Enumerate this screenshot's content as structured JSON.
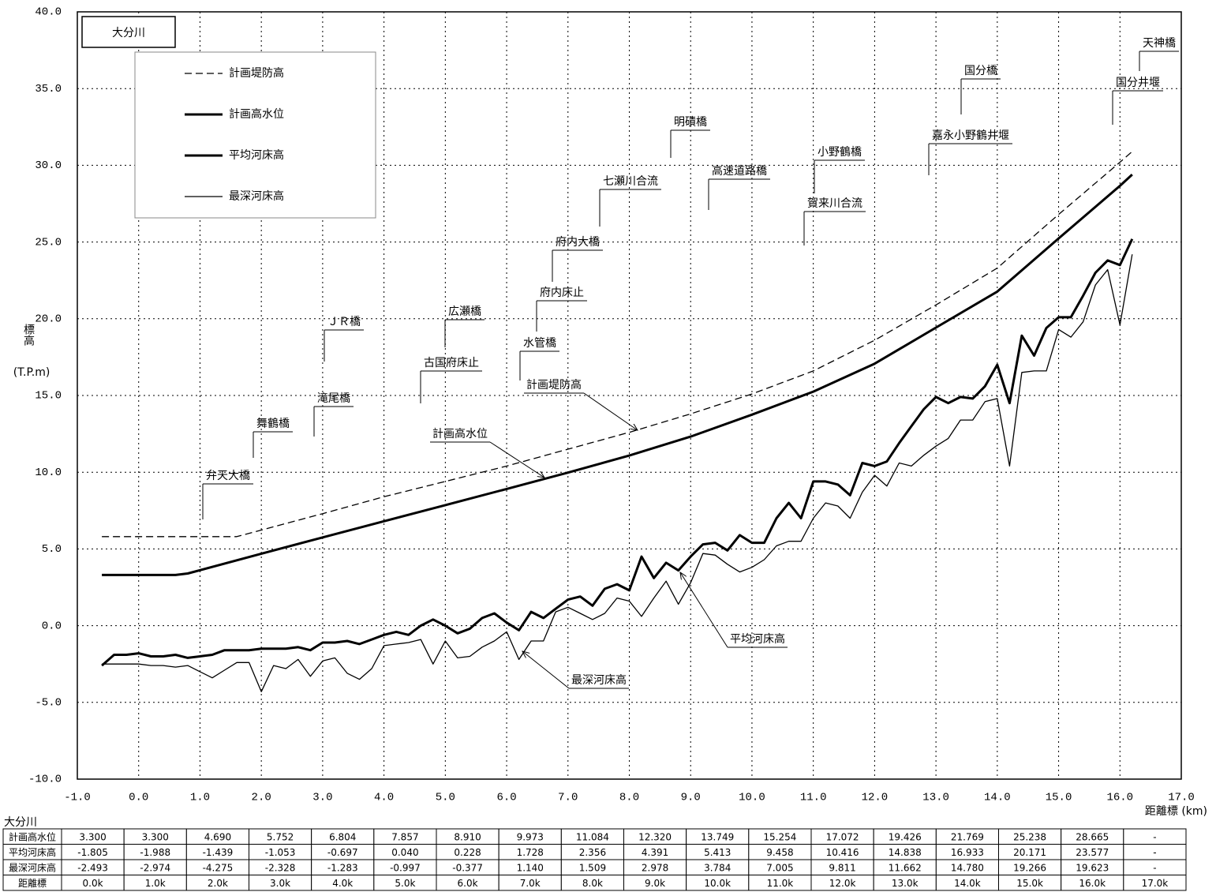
{
  "chart_data": {
    "type": "line",
    "title": "大分川",
    "y_label": "標高",
    "y_unit": "(T.P.m)",
    "x_label": "距離標 (km)",
    "xlim": [
      -1,
      17
    ],
    "xticks": [
      {
        "value": -1,
        "label": "-1.0"
      },
      {
        "value": 0,
        "label": "0.0"
      },
      {
        "value": 1,
        "label": "1.0"
      },
      {
        "value": 2,
        "label": "2.0"
      },
      {
        "value": 3,
        "label": "3.0"
      },
      {
        "value": 4,
        "label": "4.0"
      },
      {
        "value": 5,
        "label": "5.0"
      },
      {
        "value": 6,
        "label": "6.0"
      },
      {
        "value": 7,
        "label": "7.0"
      },
      {
        "value": 8,
        "label": "8.0"
      },
      {
        "value": 9,
        "label": "9.0"
      },
      {
        "value": 10,
        "label": "10.0"
      },
      {
        "value": 11,
        "label": "11.0"
      },
      {
        "value": 12,
        "label": "12.0"
      },
      {
        "value": 13,
        "label": "13.0"
      },
      {
        "value": 14,
        "label": "14.0"
      },
      {
        "value": 15,
        "label": "15.0"
      },
      {
        "value": 16,
        "label": "16.0"
      },
      {
        "value": 17,
        "label": "17.0"
      }
    ],
    "ylim": [
      -10,
      40
    ],
    "yticks": [
      {
        "value": -10,
        "label": "-10.0"
      },
      {
        "value": -5,
        "label": "-5.0"
      },
      {
        "value": 0,
        "label": "0.0"
      },
      {
        "value": 5,
        "label": "5.0"
      },
      {
        "value": 10,
        "label": "10.0"
      },
      {
        "value": 15,
        "label": "15.0"
      },
      {
        "value": 20,
        "label": "20.0"
      },
      {
        "value": 25,
        "label": "25.0"
      },
      {
        "value": 30,
        "label": "30.0"
      },
      {
        "value": 35,
        "label": "35.0"
      },
      {
        "value": 40,
        "label": "40.0"
      }
    ],
    "grid": true,
    "legend": "upper left",
    "series": [
      {
        "name": "計画堤防高",
        "color": "#000000",
        "style": "dashed",
        "x": [
          -0.6,
          1.6,
          3,
          4,
          5,
          6,
          7,
          8,
          9,
          10,
          11,
          12,
          13,
          14,
          15,
          16,
          16.2
        ],
        "values": [
          5.8,
          5.8,
          7.3,
          8.4,
          9.4,
          10.4,
          11.5,
          12.6,
          13.8,
          15.1,
          16.6,
          18.6,
          20.9,
          23.3,
          26.8,
          30.2,
          30.9
        ]
      },
      {
        "name": "計画高水位",
        "color": "#000000",
        "style": "thick",
        "x": [
          -0.6,
          0.6,
          0.8,
          2,
          3,
          4,
          5,
          6,
          7,
          8,
          9,
          10,
          11,
          12,
          13,
          14,
          15,
          16,
          16.2
        ],
        "values": [
          3.3,
          3.3,
          3.4,
          4.69,
          5.752,
          6.804,
          7.857,
          8.91,
          9.973,
          11.084,
          12.32,
          13.749,
          15.254,
          17.072,
          19.426,
          21.769,
          25.238,
          28.665,
          29.4
        ]
      },
      {
        "name": "平均河床高",
        "color": "#000000",
        "style": "thick",
        "x": [
          -0.6,
          -0.4,
          -0.2,
          0,
          0.2,
          0.4,
          0.6,
          0.8,
          1,
          1.2,
          1.4,
          1.6,
          1.8,
          2,
          2.2,
          2.4,
          2.6,
          2.8,
          3,
          3.2,
          3.4,
          3.6,
          3.8,
          4,
          4.2,
          4.4,
          4.6,
          4.8,
          5,
          5.2,
          5.4,
          5.6,
          5.8,
          6,
          6.2,
          6.4,
          6.6,
          6.8,
          7,
          7.2,
          7.4,
          7.6,
          7.8,
          8,
          8.2,
          8.4,
          8.6,
          8.8,
          9,
          9.2,
          9.4,
          9.6,
          9.8,
          10,
          10.2,
          10.4,
          10.6,
          10.8,
          11,
          11.2,
          11.4,
          11.6,
          11.8,
          12,
          12.2,
          12.4,
          12.6,
          12.8,
          13,
          13.2,
          13.4,
          13.6,
          13.8,
          14,
          14.2,
          14.4,
          14.6,
          14.8,
          15,
          15.2,
          15.4,
          15.6,
          15.8,
          16,
          16.2
        ],
        "values": [
          -2.6,
          -1.9,
          -1.9,
          -1.8,
          -2.0,
          -2.0,
          -1.9,
          -2.1,
          -2.0,
          -1.9,
          -1.6,
          -1.6,
          -1.6,
          -1.5,
          -1.5,
          -1.5,
          -1.4,
          -1.6,
          -1.1,
          -1.1,
          -1.0,
          -1.2,
          -0.9,
          -0.6,
          -0.4,
          -0.6,
          0.0,
          0.4,
          0.0,
          -0.5,
          -0.2,
          0.5,
          0.8,
          0.2,
          -0.3,
          0.9,
          0.5,
          1.1,
          1.7,
          1.9,
          1.3,
          2.4,
          2.7,
          2.3,
          4.5,
          3.1,
          4.1,
          3.6,
          4.5,
          5.3,
          5.4,
          4.9,
          5.9,
          5.4,
          5.4,
          7.0,
          8.0,
          7.0,
          9.4,
          9.4,
          9.2,
          8.5,
          10.6,
          10.4,
          10.7,
          11.9,
          13.0,
          14.1,
          14.9,
          14.5,
          14.9,
          14.8,
          15.6,
          17.0,
          14.5,
          18.9,
          17.6,
          19.4,
          20.1,
          20.1,
          21.5,
          23.0,
          23.8,
          23.5,
          25.2
        ]
      },
      {
        "name": "最深河床高",
        "color": "#000000",
        "style": "thin",
        "x": [
          -0.6,
          -0.4,
          -0.2,
          0,
          0.2,
          0.4,
          0.6,
          0.8,
          1,
          1.2,
          1.4,
          1.6,
          1.8,
          2,
          2.2,
          2.4,
          2.6,
          2.8,
          3,
          3.2,
          3.4,
          3.6,
          3.8,
          4,
          4.2,
          4.4,
          4.6,
          4.8,
          5,
          5.2,
          5.4,
          5.6,
          5.8,
          6,
          6.2,
          6.4,
          6.6,
          6.8,
          7,
          7.2,
          7.4,
          7.6,
          7.8,
          8,
          8.2,
          8.4,
          8.6,
          8.8,
          9,
          9.2,
          9.4,
          9.6,
          9.8,
          10,
          10.2,
          10.4,
          10.6,
          10.8,
          11,
          11.2,
          11.4,
          11.6,
          11.8,
          12,
          12.2,
          12.4,
          12.6,
          12.8,
          13,
          13.2,
          13.4,
          13.6,
          13.8,
          14,
          14.2,
          14.4,
          14.6,
          14.8,
          15,
          15.2,
          15.4,
          15.6,
          15.8,
          16,
          16.2
        ],
        "values": [
          -2.5,
          -2.5,
          -2.5,
          -2.5,
          -2.6,
          -2.6,
          -2.7,
          -2.6,
          -3.0,
          -3.4,
          -2.9,
          -2.4,
          -2.4,
          -4.3,
          -2.6,
          -2.8,
          -2.2,
          -3.3,
          -2.3,
          -2.1,
          -3.1,
          -3.5,
          -2.8,
          -1.3,
          -1.2,
          -1.1,
          -0.9,
          -2.5,
          -1.0,
          -2.1,
          -2.0,
          -1.4,
          -1.0,
          -0.4,
          -2.2,
          -1.0,
          -1.0,
          0.9,
          1.2,
          0.8,
          0.4,
          0.8,
          1.8,
          1.6,
          0.6,
          1.8,
          2.9,
          1.4,
          2.8,
          4.7,
          4.6,
          4.0,
          3.5,
          3.8,
          4.3,
          5.2,
          5.5,
          5.5,
          7.0,
          8.0,
          7.8,
          7.0,
          8.7,
          9.8,
          9.1,
          10.6,
          10.4,
          11.1,
          11.7,
          12.2,
          13.4,
          13.4,
          14.6,
          14.8,
          10.4,
          16.5,
          16.6,
          16.6,
          19.3,
          18.8,
          19.8,
          22.2,
          23.2,
          19.6,
          24.2
        ]
      }
    ],
    "annotations": [
      "弁天大橋",
      "舞鶴橋",
      "滝尾橋",
      "ＪＲ橋",
      "古国府床止",
      "広瀬橋",
      "水管橋",
      "府内床止",
      "府内大橋",
      "七瀬川合流",
      "明磧橋",
      "高速道路橋",
      "小野鶴橋",
      "賀来川合流",
      "嘉永小野鶴井堰",
      "国分橋",
      "国分井堰",
      "天神橋"
    ],
    "line_labels": [
      "計画堤防高",
      "計画高水位",
      "平均河床高",
      "最深河床高"
    ]
  },
  "table": {
    "title": "大分川",
    "rows": [
      [
        "計画高水位",
        "3.300",
        "3.300",
        "4.690",
        "5.752",
        "6.804",
        "7.857",
        "8.910",
        "9.973",
        "11.084",
        "12.320",
        "13.749",
        "15.254",
        "17.072",
        "19.426",
        "21.769",
        "25.238",
        "28.665",
        "-"
      ],
      [
        "平均河床高",
        "-1.805",
        "-1.988",
        "-1.439",
        "-1.053",
        "-0.697",
        "0.040",
        "0.228",
        "1.728",
        "2.356",
        "4.391",
        "5.413",
        "9.458",
        "10.416",
        "14.838",
        "16.933",
        "20.171",
        "23.577",
        "-"
      ],
      [
        "最深河床高",
        "-2.493",
        "-2.974",
        "-4.275",
        "-2.328",
        "-1.283",
        "-0.997",
        "-0.377",
        "1.140",
        "1.509",
        "2.978",
        "3.784",
        "7.005",
        "9.811",
        "11.662",
        "14.780",
        "19.266",
        "19.623",
        "-"
      ],
      [
        "距離標",
        "0.0k",
        "1.0k",
        "2.0k",
        "3.0k",
        "4.0k",
        "5.0k",
        "6.0k",
        "7.0k",
        "8.0k",
        "9.0k",
        "10.0k",
        "11.0k",
        "12.0k",
        "13.0k",
        "14.0k",
        "15.0k",
        "16.0k",
        "17.0k"
      ]
    ]
  }
}
